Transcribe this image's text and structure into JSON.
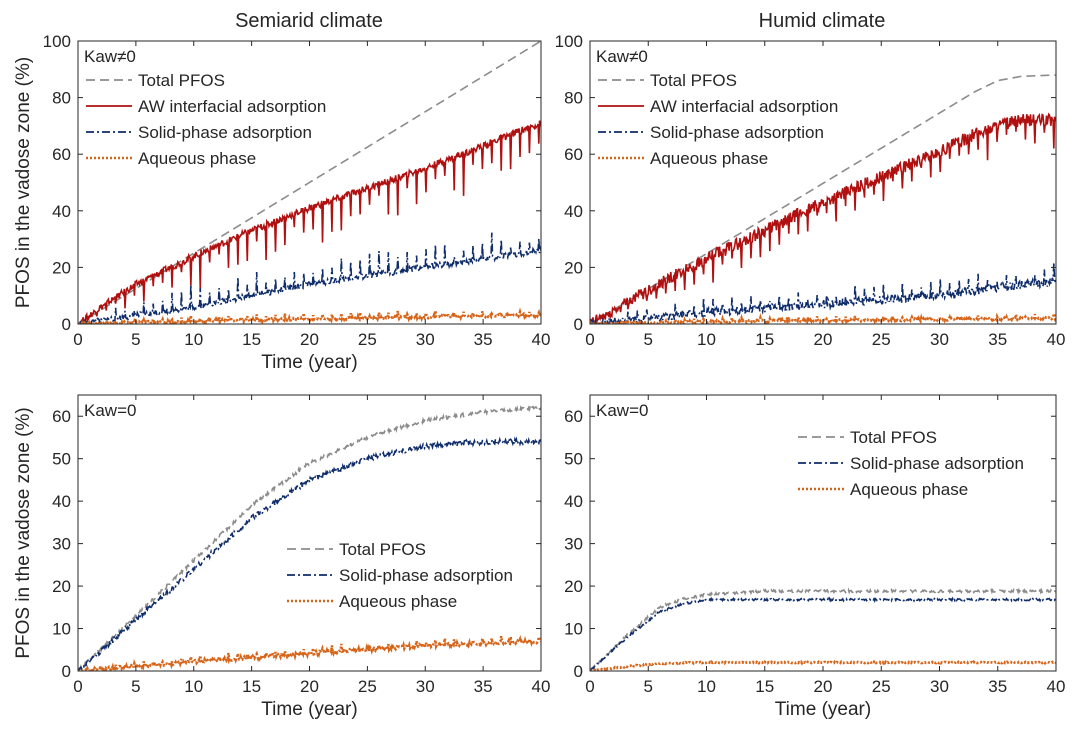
{
  "figure": {
    "panel_titles": [
      "Semiarid climate",
      "Humid climate"
    ]
  },
  "chart_data": [
    {
      "type": "line",
      "title": "Semiarid climate",
      "annotation": "Kaw≠0",
      "xlabel": "Time (year)",
      "ylabel": "PFOS in the vadose zone (%)",
      "xlim": [
        0,
        40
      ],
      "ylim": [
        0,
        100
      ],
      "xticks": [
        0,
        5,
        10,
        15,
        20,
        25,
        30,
        35,
        40
      ],
      "yticks": [
        0,
        20,
        40,
        60,
        80,
        100
      ],
      "grid": false,
      "legend": "top-left",
      "series": [
        {
          "name": "Total PFOS",
          "color": "#8c8c8c",
          "style": "dashed",
          "x": [
            0,
            40
          ],
          "y": [
            0,
            100
          ],
          "noise": 0,
          "spikes": 0
        },
        {
          "name": "AW interfacial adsorption",
          "color": "#b01010",
          "style": "solid",
          "x": [
            0,
            2,
            5,
            10,
            15,
            20,
            25,
            30,
            35,
            38,
            40
          ],
          "y": [
            0,
            6,
            14,
            24,
            33,
            41,
            48,
            55,
            63,
            68,
            71
          ],
          "noise": 1.2,
          "spikes": 14
        },
        {
          "name": "Solid-phase adsorption",
          "color": "#0f2d6b",
          "style": "dashdot",
          "x": [
            0,
            5,
            10,
            15,
            20,
            25,
            30,
            35,
            40
          ],
          "y": [
            0,
            3,
            6,
            10,
            14,
            17,
            20,
            23,
            26
          ],
          "noise": 1.0,
          "spikes": -9
        },
        {
          "name": "Aqueous phase",
          "color": "#d6651a",
          "style": "dotted",
          "x": [
            0,
            10,
            20,
            30,
            40
          ],
          "y": [
            0,
            1,
            1.8,
            2.5,
            3.2
          ],
          "noise": 0.5,
          "spikes": -2
        }
      ]
    },
    {
      "type": "line",
      "title": "Humid climate",
      "annotation": "Kaw≠0",
      "xlabel": "",
      "ylabel": "",
      "xlim": [
        0,
        40
      ],
      "ylim": [
        0,
        100
      ],
      "xticks": [
        0,
        5,
        10,
        15,
        20,
        25,
        30,
        35,
        40
      ],
      "yticks": [
        0,
        20,
        40,
        60,
        80,
        100
      ],
      "grid": false,
      "legend": "top-left",
      "series": [
        {
          "name": "Total PFOS",
          "color": "#8c8c8c",
          "style": "dashed",
          "x": [
            0,
            33,
            35,
            37,
            40
          ],
          "y": [
            0,
            82,
            86,
            87.5,
            88
          ],
          "noise": 0,
          "spikes": 0
        },
        {
          "name": "AW interfacial adsorption",
          "color": "#b01010",
          "style": "solid",
          "x": [
            0,
            5,
            10,
            15,
            20,
            25,
            30,
            33,
            35,
            37,
            40
          ],
          "y": [
            0,
            12,
            23,
            33,
            43,
            52,
            61,
            67,
            70,
            72,
            72
          ],
          "noise": 2.2,
          "spikes": 10
        },
        {
          "name": "Solid-phase adsorption",
          "color": "#0f2d6b",
          "style": "dashdot",
          "x": [
            0,
            5,
            10,
            15,
            20,
            25,
            30,
            35,
            40
          ],
          "y": [
            0,
            2,
            4,
            5.5,
            7,
            8.5,
            10,
            13,
            15
          ],
          "noise": 1.5,
          "spikes": -6
        },
        {
          "name": "Aqueous phase",
          "color": "#d6651a",
          "style": "dotted",
          "x": [
            0,
            10,
            20,
            30,
            40
          ],
          "y": [
            0,
            0.8,
            1.2,
            1.6,
            2.0
          ],
          "noise": 0.4,
          "spikes": -1.5
        }
      ]
    },
    {
      "type": "line",
      "title": "",
      "annotation": "Kaw=0",
      "xlabel": "Time (year)",
      "ylabel": "PFOS in the vadose zone (%)",
      "xlim": [
        0,
        40
      ],
      "ylim": [
        0,
        65
      ],
      "xticks": [
        0,
        5,
        10,
        15,
        20,
        25,
        30,
        35,
        40
      ],
      "yticks": [
        0,
        10,
        20,
        30,
        40,
        50,
        60
      ],
      "grid": false,
      "legend": "center-right",
      "series": [
        {
          "name": "Total PFOS",
          "color": "#8c8c8c",
          "style": "dashed",
          "x": [
            0,
            5,
            10,
            15,
            20,
            25,
            30,
            35,
            40
          ],
          "y": [
            0,
            13,
            26,
            39,
            49,
            55,
            59,
            61,
            62
          ],
          "noise": 0.4,
          "spikes": 0
        },
        {
          "name": "Solid-phase adsorption",
          "color": "#0f2d6b",
          "style": "dashdot",
          "x": [
            0,
            5,
            10,
            15,
            20,
            25,
            30,
            35,
            40
          ],
          "y": [
            0,
            12,
            24,
            36,
            45,
            50,
            53,
            54,
            54
          ],
          "noise": 0.6,
          "spikes": 0
        },
        {
          "name": "Aqueous phase",
          "color": "#d6651a",
          "style": "dotted",
          "x": [
            0,
            10,
            20,
            30,
            40
          ],
          "y": [
            0,
            2.2,
            4.2,
            6,
            7
          ],
          "noise": 0.4,
          "spikes": -1.5
        }
      ]
    },
    {
      "type": "line",
      "title": "",
      "annotation": "Kaw=0",
      "xlabel": "Time (year)",
      "ylabel": "",
      "xlim": [
        0,
        40
      ],
      "ylim": [
        0,
        65
      ],
      "xticks": [
        0,
        5,
        10,
        15,
        20,
        25,
        30,
        35,
        40
      ],
      "yticks": [
        0,
        10,
        20,
        30,
        40,
        50,
        60
      ],
      "grid": false,
      "legend": "top-center",
      "series": [
        {
          "name": "Total PFOS",
          "color": "#8c8c8c",
          "style": "dashed",
          "x": [
            0,
            3,
            6,
            8,
            10,
            15,
            20,
            25,
            30,
            35,
            40
          ],
          "y": [
            0,
            8,
            15,
            17,
            18,
            18.8,
            18.8,
            18.8,
            18.8,
            18.8,
            18.8
          ],
          "noise": 0.3,
          "spikes": 0
        },
        {
          "name": "Solid-phase adsorption",
          "color": "#0f2d6b",
          "style": "dashdot",
          "x": [
            0,
            3,
            6,
            8,
            10,
            15,
            20,
            25,
            30,
            35,
            40
          ],
          "y": [
            0,
            7.5,
            14,
            15.8,
            16.8,
            16.8,
            16.8,
            16.8,
            16.8,
            16.8,
            16.8
          ],
          "noise": 0.25,
          "spikes": 0
        },
        {
          "name": "Aqueous phase",
          "color": "#d6651a",
          "style": "dotted",
          "x": [
            0,
            3,
            6,
            10,
            20,
            30,
            40
          ],
          "y": [
            0,
            1.0,
            1.8,
            2.0,
            2.0,
            2.0,
            2.0
          ],
          "noise": 0.15,
          "spikes": 0
        }
      ]
    }
  ]
}
